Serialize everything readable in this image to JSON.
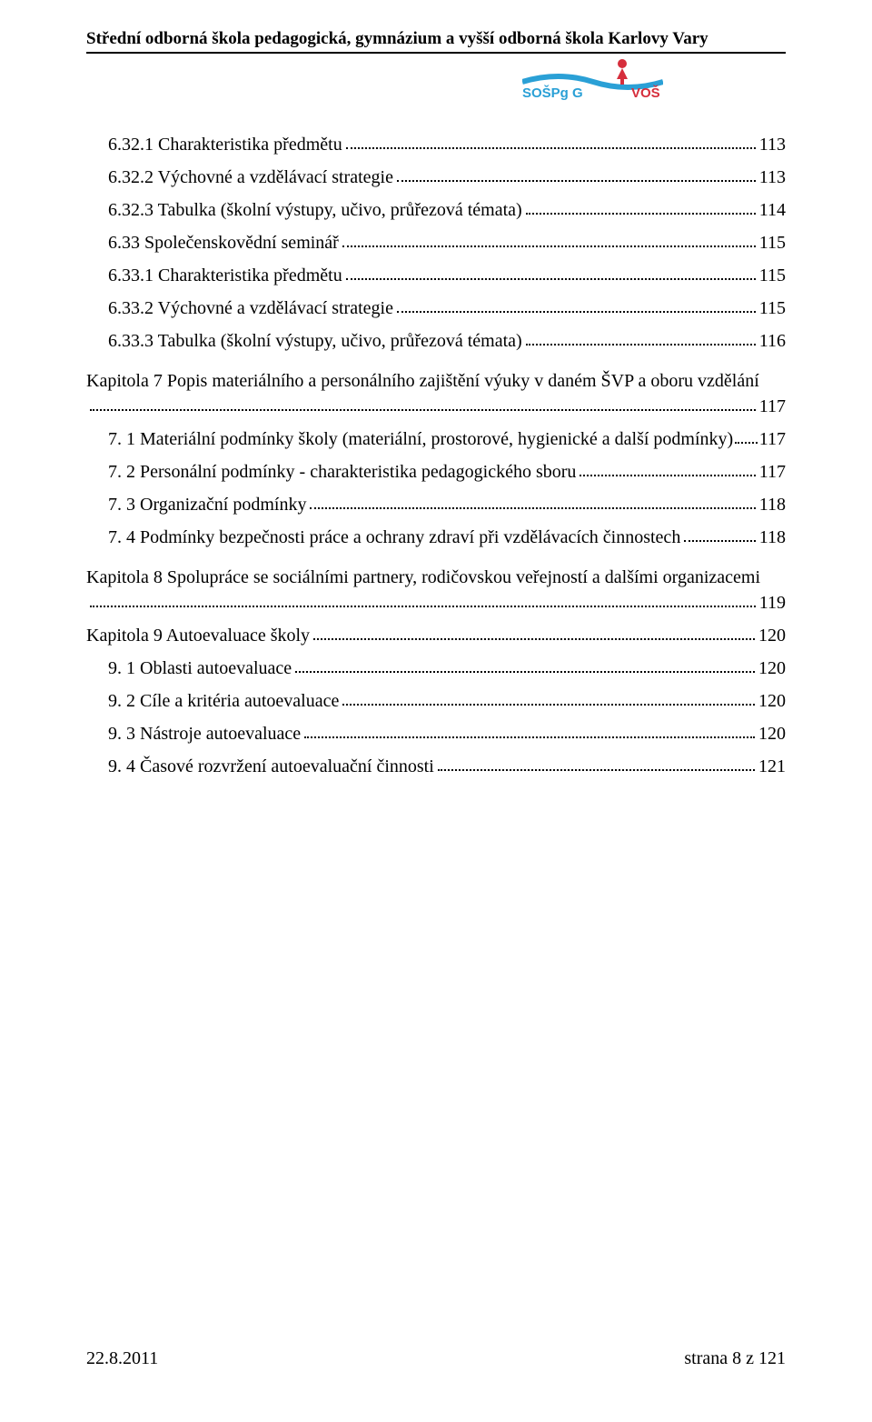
{
  "header": {
    "title": "Střední odborná škola pedagogická, gymnázium a vyšší odborná škola Karlovy Vary"
  },
  "logo": {
    "text_left": "SOŠPg",
    "text_mid": "G",
    "text_right": "VOŠ",
    "color_left": "#2aa0d6",
    "color_right": "#d62e3c",
    "person_color": "#d62e3c",
    "wave_color": "#2aa0d6"
  },
  "toc": [
    {
      "label": "6.32.1 Charakteristika předmětu",
      "page": "113",
      "indent": true
    },
    {
      "label": "6.32.2 Výchovné a vzdělávací strategie",
      "page": "113",
      "indent": true
    },
    {
      "label": "6.32.3 Tabulka (školní výstupy, učivo, průřezová témata)",
      "page": "114",
      "indent": true
    },
    {
      "label": "6.33 Společenskovědní seminář",
      "page": "115",
      "indent": true
    },
    {
      "label": "6.33.1 Charakteristika předmětu",
      "page": "115",
      "indent": true
    },
    {
      "label": "6.33.2 Výchovné a vzdělávací strategie",
      "page": "115",
      "indent": true
    },
    {
      "label": "6.33.3 Tabulka (školní výstupy, učivo, průřezová témata)",
      "page": "116",
      "indent": true
    },
    {
      "label": "Kapitola 7 Popis materiálního a personálního zajištění výuky v daném ŠVP a oboru vzdělání",
      "page": "117",
      "indent": false,
      "wrap": true
    },
    {
      "label": "7. 1 Materiální podmínky školy (materiální, prostorové, hygienické a další podmínky)",
      "page": "117",
      "indent": true,
      "tight": true
    },
    {
      "label": "7. 2 Personální podmínky - charakteristika pedagogického sboru",
      "page": "117",
      "indent": true
    },
    {
      "label": "7. 3 Organizační podmínky",
      "page": "118",
      "indent": true
    },
    {
      "label": "7. 4 Podmínky bezpečnosti práce a ochrany zdraví při vzdělávacích činnostech",
      "page": "118",
      "indent": true
    },
    {
      "label": "Kapitola 8 Spolupráce se sociálními partnery, rodičovskou veřejností a dalšími organizacemi",
      "page": "119",
      "indent": false,
      "wrap": true
    },
    {
      "label": "Kapitola 9 Autoevaluace školy",
      "page": "120",
      "indent": false
    },
    {
      "label": "9. 1 Oblasti autoevaluace",
      "page": "120",
      "indent": true
    },
    {
      "label": "9. 2 Cíle a kritéria autoevaluace",
      "page": "120",
      "indent": true
    },
    {
      "label": "9. 3 Nástroje autoevaluace",
      "page": "120",
      "indent": true
    },
    {
      "label": "9. 4 Časové rozvržení autoevaluační činnosti",
      "page": "121",
      "indent": true
    }
  ],
  "footer": {
    "date": "22.8.2011",
    "page_info": "strana 8 z 121"
  },
  "colors": {
    "text": "#000000",
    "background": "#ffffff"
  },
  "typography": {
    "body_family": "Times New Roman",
    "body_size_pt": 15,
    "header_weight": "bold"
  }
}
